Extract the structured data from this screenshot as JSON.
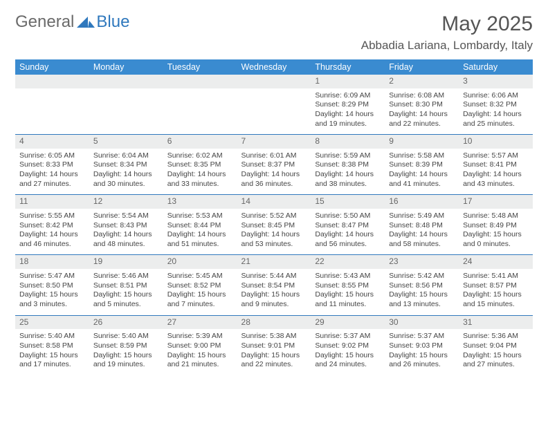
{
  "brand": {
    "general": "General",
    "blue": "Blue"
  },
  "title": "May 2025",
  "location": "Abbadia Lariana, Lombardy, Italy",
  "colors": {
    "header_bg": "#3a8bd0",
    "header_text": "#ffffff",
    "daynum_bg": "#eceded",
    "rule": "#2f78bd",
    "brand_gray": "#6a6a6a",
    "brand_blue": "#2f78bd",
    "body_text": "#444"
  },
  "typography": {
    "title_fontsize": 30,
    "location_fontsize": 17,
    "header_fontsize": 12.5,
    "daynum_fontsize": 12,
    "cell_fontsize": 10.5
  },
  "weekdays": [
    "Sunday",
    "Monday",
    "Tuesday",
    "Wednesday",
    "Thursday",
    "Friday",
    "Saturday"
  ],
  "weeks": [
    [
      {
        "n": "",
        "lines": []
      },
      {
        "n": "",
        "lines": []
      },
      {
        "n": "",
        "lines": []
      },
      {
        "n": "",
        "lines": []
      },
      {
        "n": "1",
        "lines": [
          "Sunrise: 6:09 AM",
          "Sunset: 8:29 PM",
          "Daylight: 14 hours",
          "and 19 minutes."
        ]
      },
      {
        "n": "2",
        "lines": [
          "Sunrise: 6:08 AM",
          "Sunset: 8:30 PM",
          "Daylight: 14 hours",
          "and 22 minutes."
        ]
      },
      {
        "n": "3",
        "lines": [
          "Sunrise: 6:06 AM",
          "Sunset: 8:32 PM",
          "Daylight: 14 hours",
          "and 25 minutes."
        ]
      }
    ],
    [
      {
        "n": "4",
        "lines": [
          "Sunrise: 6:05 AM",
          "Sunset: 8:33 PM",
          "Daylight: 14 hours",
          "and 27 minutes."
        ]
      },
      {
        "n": "5",
        "lines": [
          "Sunrise: 6:04 AM",
          "Sunset: 8:34 PM",
          "Daylight: 14 hours",
          "and 30 minutes."
        ]
      },
      {
        "n": "6",
        "lines": [
          "Sunrise: 6:02 AM",
          "Sunset: 8:35 PM",
          "Daylight: 14 hours",
          "and 33 minutes."
        ]
      },
      {
        "n": "7",
        "lines": [
          "Sunrise: 6:01 AM",
          "Sunset: 8:37 PM",
          "Daylight: 14 hours",
          "and 36 minutes."
        ]
      },
      {
        "n": "8",
        "lines": [
          "Sunrise: 5:59 AM",
          "Sunset: 8:38 PM",
          "Daylight: 14 hours",
          "and 38 minutes."
        ]
      },
      {
        "n": "9",
        "lines": [
          "Sunrise: 5:58 AM",
          "Sunset: 8:39 PM",
          "Daylight: 14 hours",
          "and 41 minutes."
        ]
      },
      {
        "n": "10",
        "lines": [
          "Sunrise: 5:57 AM",
          "Sunset: 8:41 PM",
          "Daylight: 14 hours",
          "and 43 minutes."
        ]
      }
    ],
    [
      {
        "n": "11",
        "lines": [
          "Sunrise: 5:55 AM",
          "Sunset: 8:42 PM",
          "Daylight: 14 hours",
          "and 46 minutes."
        ]
      },
      {
        "n": "12",
        "lines": [
          "Sunrise: 5:54 AM",
          "Sunset: 8:43 PM",
          "Daylight: 14 hours",
          "and 48 minutes."
        ]
      },
      {
        "n": "13",
        "lines": [
          "Sunrise: 5:53 AM",
          "Sunset: 8:44 PM",
          "Daylight: 14 hours",
          "and 51 minutes."
        ]
      },
      {
        "n": "14",
        "lines": [
          "Sunrise: 5:52 AM",
          "Sunset: 8:45 PM",
          "Daylight: 14 hours",
          "and 53 minutes."
        ]
      },
      {
        "n": "15",
        "lines": [
          "Sunrise: 5:50 AM",
          "Sunset: 8:47 PM",
          "Daylight: 14 hours",
          "and 56 minutes."
        ]
      },
      {
        "n": "16",
        "lines": [
          "Sunrise: 5:49 AM",
          "Sunset: 8:48 PM",
          "Daylight: 14 hours",
          "and 58 minutes."
        ]
      },
      {
        "n": "17",
        "lines": [
          "Sunrise: 5:48 AM",
          "Sunset: 8:49 PM",
          "Daylight: 15 hours",
          "and 0 minutes."
        ]
      }
    ],
    [
      {
        "n": "18",
        "lines": [
          "Sunrise: 5:47 AM",
          "Sunset: 8:50 PM",
          "Daylight: 15 hours",
          "and 3 minutes."
        ]
      },
      {
        "n": "19",
        "lines": [
          "Sunrise: 5:46 AM",
          "Sunset: 8:51 PM",
          "Daylight: 15 hours",
          "and 5 minutes."
        ]
      },
      {
        "n": "20",
        "lines": [
          "Sunrise: 5:45 AM",
          "Sunset: 8:52 PM",
          "Daylight: 15 hours",
          "and 7 minutes."
        ]
      },
      {
        "n": "21",
        "lines": [
          "Sunrise: 5:44 AM",
          "Sunset: 8:54 PM",
          "Daylight: 15 hours",
          "and 9 minutes."
        ]
      },
      {
        "n": "22",
        "lines": [
          "Sunrise: 5:43 AM",
          "Sunset: 8:55 PM",
          "Daylight: 15 hours",
          "and 11 minutes."
        ]
      },
      {
        "n": "23",
        "lines": [
          "Sunrise: 5:42 AM",
          "Sunset: 8:56 PM",
          "Daylight: 15 hours",
          "and 13 minutes."
        ]
      },
      {
        "n": "24",
        "lines": [
          "Sunrise: 5:41 AM",
          "Sunset: 8:57 PM",
          "Daylight: 15 hours",
          "and 15 minutes."
        ]
      }
    ],
    [
      {
        "n": "25",
        "lines": [
          "Sunrise: 5:40 AM",
          "Sunset: 8:58 PM",
          "Daylight: 15 hours",
          "and 17 minutes."
        ]
      },
      {
        "n": "26",
        "lines": [
          "Sunrise: 5:40 AM",
          "Sunset: 8:59 PM",
          "Daylight: 15 hours",
          "and 19 minutes."
        ]
      },
      {
        "n": "27",
        "lines": [
          "Sunrise: 5:39 AM",
          "Sunset: 9:00 PM",
          "Daylight: 15 hours",
          "and 21 minutes."
        ]
      },
      {
        "n": "28",
        "lines": [
          "Sunrise: 5:38 AM",
          "Sunset: 9:01 PM",
          "Daylight: 15 hours",
          "and 22 minutes."
        ]
      },
      {
        "n": "29",
        "lines": [
          "Sunrise: 5:37 AM",
          "Sunset: 9:02 PM",
          "Daylight: 15 hours",
          "and 24 minutes."
        ]
      },
      {
        "n": "30",
        "lines": [
          "Sunrise: 5:37 AM",
          "Sunset: 9:03 PM",
          "Daylight: 15 hours",
          "and 26 minutes."
        ]
      },
      {
        "n": "31",
        "lines": [
          "Sunrise: 5:36 AM",
          "Sunset: 9:04 PM",
          "Daylight: 15 hours",
          "and 27 minutes."
        ]
      }
    ]
  ]
}
